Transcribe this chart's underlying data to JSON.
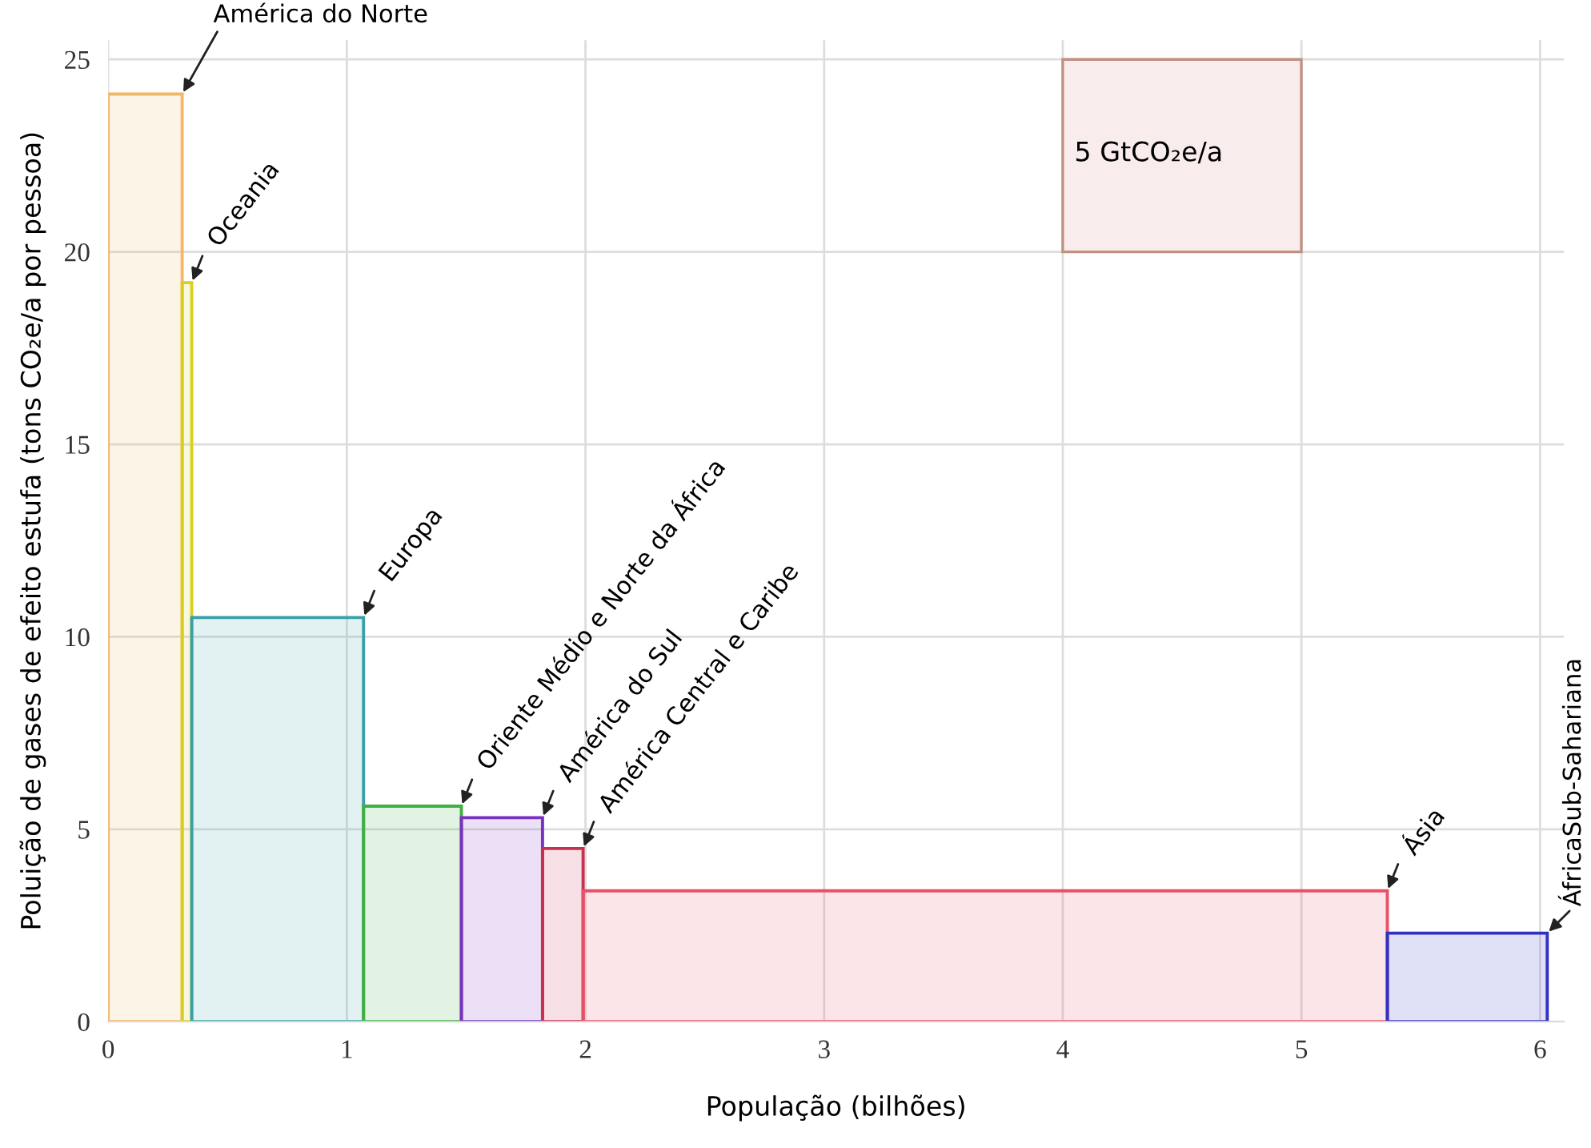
{
  "chart_data": {
    "type": "histogram",
    "xlabel": "População (bilhões)",
    "ylabel": "Poluição de gases de efeito estufa (tons CO₂e/a por pessoa)",
    "bins": [
      0,
      0.31,
      0.35,
      1.07,
      1.48,
      1.82,
      1.99,
      5.36,
      6.03
    ],
    "values": [
      24.1,
      19.2,
      10.5,
      5.6,
      5.3,
      4.5,
      3.4,
      2.3
    ],
    "colors": [
      "#f2b866",
      "#d8d020",
      "#3aa0a8",
      "#40b040",
      "#7a30c0",
      "#c83050",
      "#e8506a",
      "#3030c8"
    ],
    "xlim": [
      0,
      6.1
    ],
    "ylim": [
      0,
      25.5
    ],
    "xticks": [
      0,
      1,
      2,
      3,
      4,
      5,
      6
    ],
    "yticks": [
      0,
      5,
      10,
      15,
      20,
      25
    ],
    "grid": true,
    "annotations": [
      {
        "text": "América do Norte",
        "x": 0.31,
        "y": 24.1
      },
      {
        "text": "Oceania",
        "x": 0.35,
        "y": 19.2
      },
      {
        "text": "Europa",
        "x": 1.07,
        "y": 10.5
      },
      {
        "text": "Oriente Médio e Norte da África",
        "x": 1.48,
        "y": 5.6
      },
      {
        "text": "América do Sul",
        "x": 1.82,
        "y": 5.3
      },
      {
        "text": "América Central e Caribe",
        "x": 1.99,
        "y": 4.5
      },
      {
        "text": "Ásia",
        "x": 5.36,
        "y": 3.4
      },
      {
        "text": "ÁfricaSub-Sahariana",
        "x": 6.03,
        "y": 2.3
      },
      "5 GtCO₂e/a"
    ]
  }
}
